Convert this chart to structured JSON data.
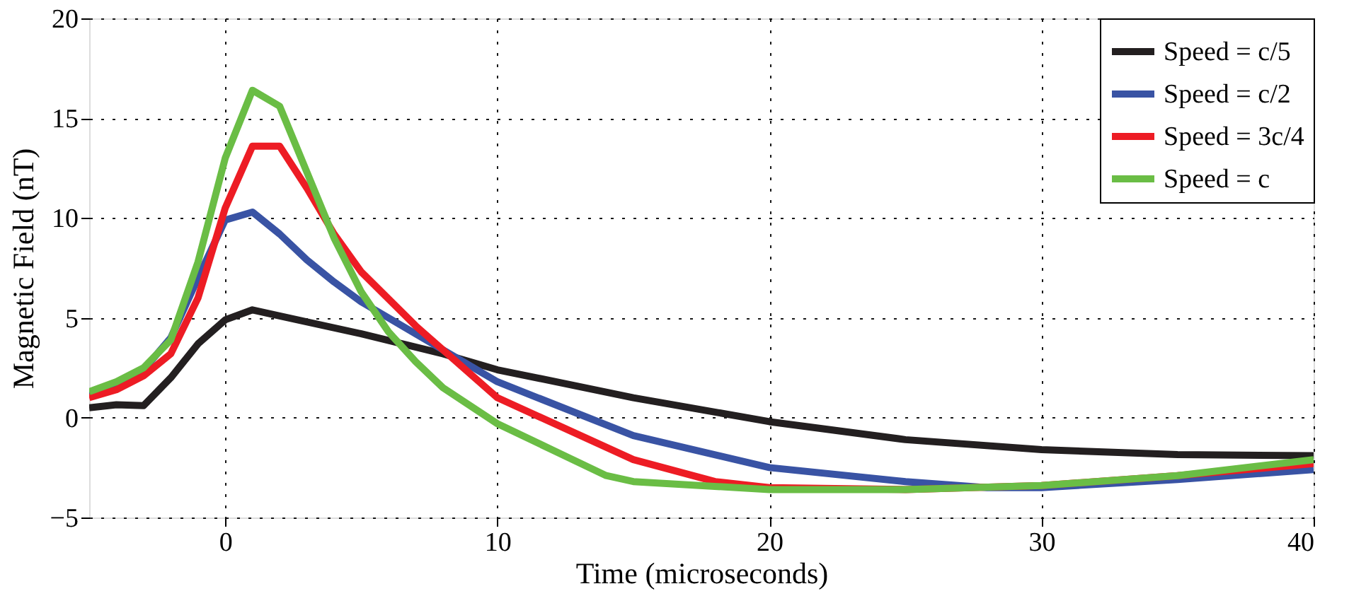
{
  "chart_data": {
    "type": "line",
    "xlabel": "Time (microseconds)",
    "ylabel": "Magnetic Field (nT)",
    "xlim": [
      -5,
      40
    ],
    "xticks": [
      0,
      10,
      20,
      30,
      40
    ],
    "ylim": [
      -5,
      20
    ],
    "yticks": [
      -5,
      0,
      5,
      10,
      15,
      20
    ],
    "grid": true,
    "legend": "top right",
    "line_style": "solid",
    "marker": "none",
    "series": [
      {
        "name": "Speed = c/5",
        "color": "#231f20",
        "x": [
          -5,
          -4,
          -3,
          -2,
          -1,
          0,
          1,
          2,
          5,
          8,
          10,
          15,
          20,
          25,
          30,
          35,
          40
        ],
        "values": [
          0.5,
          0.65,
          0.6,
          2,
          3.7,
          4.9,
          5.4,
          5.1,
          4.2,
          3.2,
          2.4,
          1.0,
          -0.2,
          -1.1,
          -1.6,
          -1.85,
          -1.9
        ]
      },
      {
        "name": "Speed = c/2",
        "color": "#3953a4",
        "x": [
          -5,
          -4,
          -3,
          -2,
          -1,
          0,
          1,
          2,
          3,
          4,
          5,
          7,
          10,
          15,
          20,
          25,
          28,
          30,
          35,
          40
        ],
        "values": [
          1.2,
          1.6,
          2.4,
          4,
          7,
          9.9,
          10.3,
          9.2,
          7.9,
          6.8,
          5.8,
          4.2,
          1.8,
          -0.9,
          -2.5,
          -3.2,
          -3.5,
          -3.5,
          -3.1,
          -2.6
        ]
      },
      {
        "name": "Speed = 3c/4",
        "color": "#ed1c24",
        "x": [
          -5,
          -4,
          -3,
          -2,
          -1,
          0,
          1,
          2,
          3,
          4,
          5,
          7,
          10,
          15,
          18,
          20,
          25,
          30,
          35,
          40
        ],
        "values": [
          1.0,
          1.4,
          2.1,
          3.2,
          6,
          10.5,
          13.6,
          13.6,
          11.5,
          9.2,
          7.3,
          4.6,
          1.0,
          -2.1,
          -3.2,
          -3.5,
          -3.6,
          -3.4,
          -2.9,
          -2.3
        ]
      },
      {
        "name": "Speed = c",
        "color": "#6abd45",
        "x": [
          -5,
          -4,
          -3,
          -2,
          -1,
          0,
          1,
          2,
          3,
          4,
          5,
          6,
          7,
          8,
          10,
          12,
          14,
          15,
          20,
          25,
          30,
          35,
          40
        ],
        "values": [
          1.3,
          1.8,
          2.5,
          3.9,
          7.8,
          13,
          16.4,
          15.6,
          12.3,
          9.0,
          6.3,
          4.3,
          2.8,
          1.5,
          -0.3,
          -1.6,
          -2.9,
          -3.2,
          -3.6,
          -3.6,
          -3.4,
          -2.9,
          -2.1
        ]
      }
    ]
  }
}
